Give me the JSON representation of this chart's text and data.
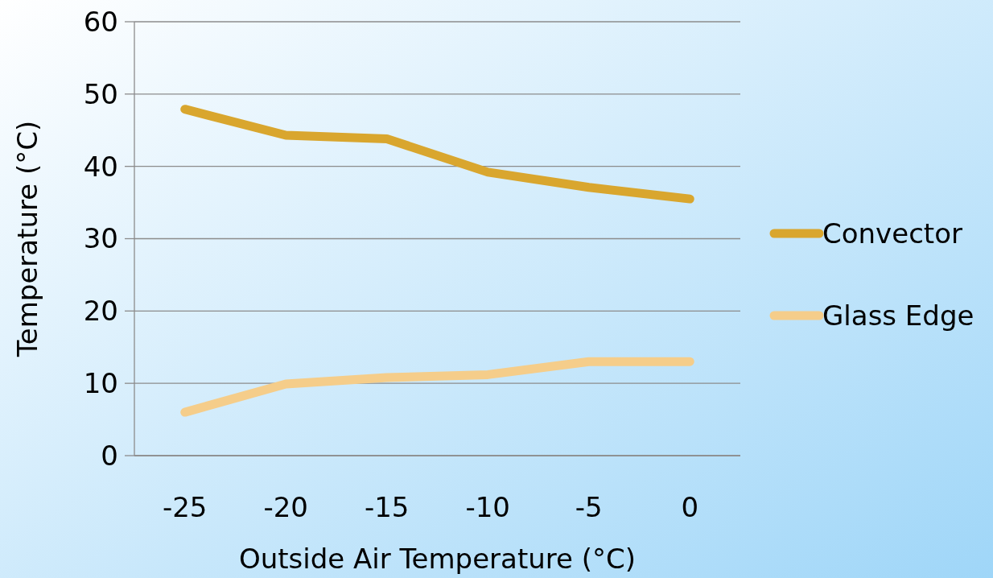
{
  "chart_data": {
    "type": "line",
    "xlabel": "Outside Air Temperature (°C)",
    "ylabel": "Temperature (°C)",
    "categories": [
      "-25",
      "-20",
      "-15",
      "-10",
      "-5",
      "0"
    ],
    "series": [
      {
        "name": "Convector",
        "color": "#d9a62e",
        "values": [
          47.9,
          44.3,
          43.8,
          39.2,
          37.1,
          35.5
        ]
      },
      {
        "name": "Glass Edge",
        "color": "#f5cd8a",
        "values": [
          6,
          9.9,
          10.8,
          11.2,
          13,
          13
        ]
      }
    ],
    "ylim": [
      0,
      60
    ],
    "yticks": [
      0,
      10,
      20,
      30,
      40,
      50,
      60
    ],
    "grid": "y",
    "legend": "right",
    "marker": "none",
    "line_style": "solid"
  }
}
